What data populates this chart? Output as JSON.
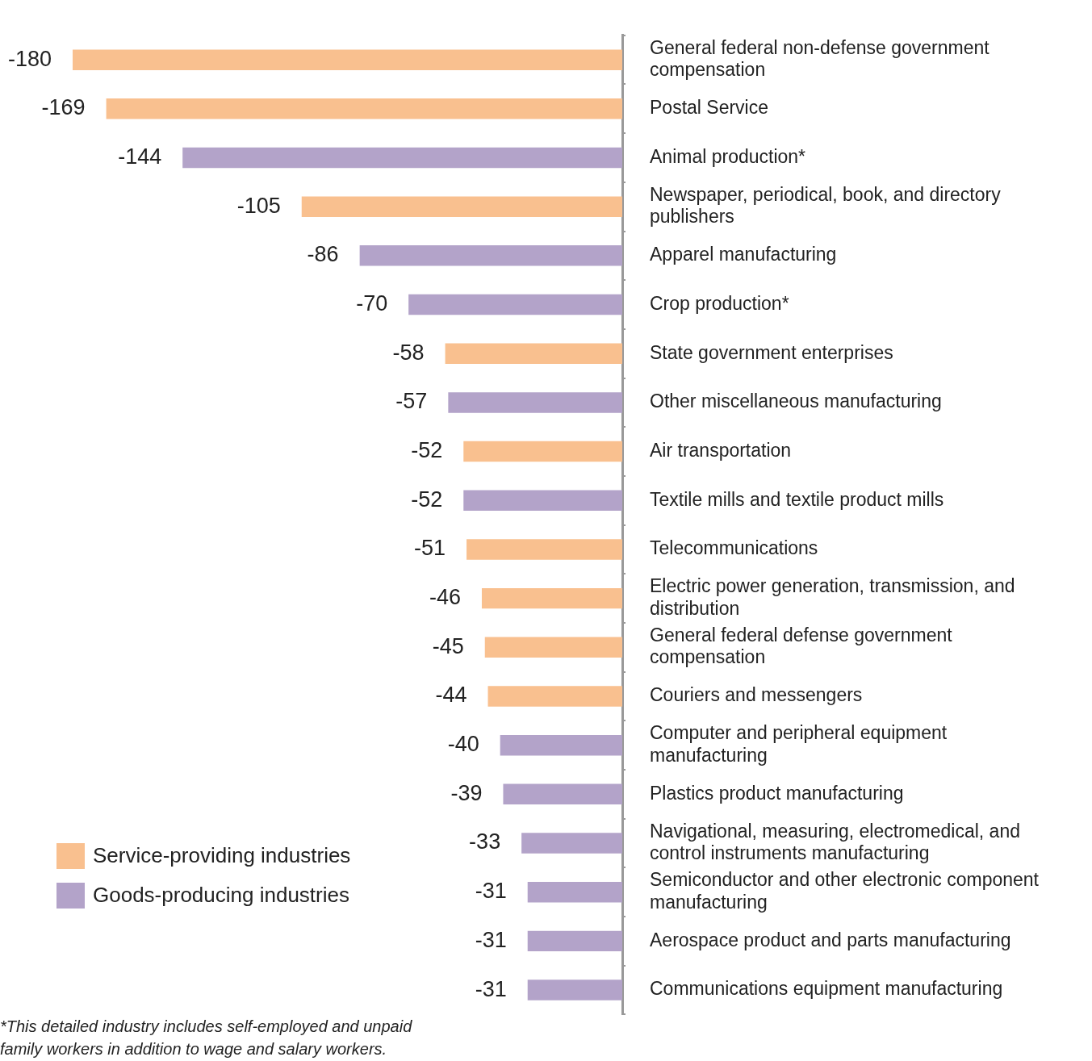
{
  "chart_data": {
    "type": "bar",
    "orientation": "horizontal",
    "categories": [
      "General federal non-defense government compensation",
      "Postal Service",
      "Animal production*",
      "Newspaper, periodical, book, and directory publishers",
      "Apparel manufacturing",
      "Crop production*",
      "State government enterprises",
      "Other miscellaneous manufacturing",
      "Air transportation",
      "Textile mills and textile product mills",
      "Telecommunications",
      "Electric power generation, transmission, and distribution",
      "General federal defense government compensation",
      "Couriers and messengers",
      "Computer and peripheral equipment manufacturing",
      "Plastics product manufacturing",
      "Navigational, measuring, electromedical, and control instruments manufacturing",
      "Semiconductor and other electronic component manufacturing",
      "Aerospace product and parts manufacturing",
      "Communications equipment manufacturing"
    ],
    "series": [
      {
        "name": "Service-providing industries",
        "color": "#f9c08f",
        "values": [
          -180,
          -169,
          null,
          -105,
          null,
          null,
          -58,
          null,
          -52,
          null,
          -51,
          -46,
          -45,
          -44,
          null,
          null,
          null,
          null,
          null,
          null
        ]
      },
      {
        "name": "Goods-producing industries",
        "color": "#b3a3c9",
        "values": [
          null,
          null,
          -144,
          null,
          -86,
          -70,
          null,
          -57,
          null,
          -52,
          null,
          null,
          null,
          null,
          -40,
          -39,
          -33,
          -31,
          -31,
          -31
        ]
      }
    ],
    "tick_labels": "y",
    "grid": false,
    "data_labels": true,
    "legend": "bottom left",
    "annotations": [
      "*This detailed industry includes self-employed and unpaid family workers in addition to wage and salary workers."
    ]
  }
}
